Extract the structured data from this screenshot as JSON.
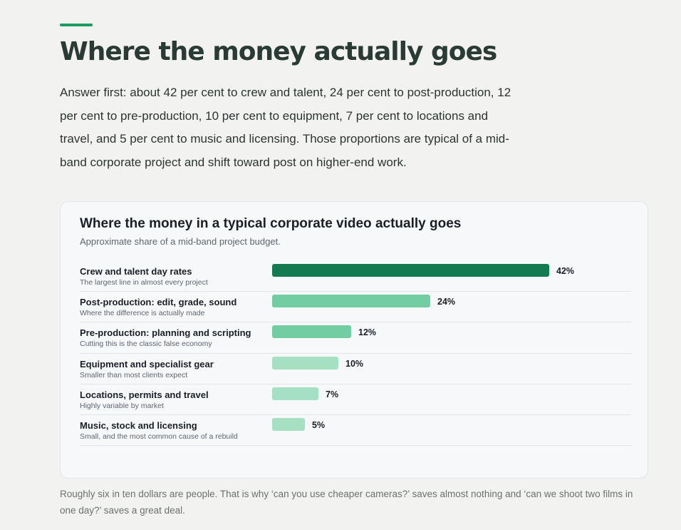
{
  "header": {
    "title": "Where the money actually goes",
    "intro": "Answer first: about 42 per cent to crew and talent, 24 per cent to post-production, 12 per cent to pre-production, 10 per cent to equipment, 7 per cent to locations and travel, and 5 per cent to music and licensing. Those proportions are typical of a mid-band corporate project and shift toward post on higher-end work."
  },
  "chart_data": {
    "type": "bar",
    "orientation": "horizontal",
    "title": "Where the money in a typical corporate video actually goes",
    "subtitle": "Approximate share of a mid-band project budget.",
    "unit": "%",
    "xlim": [
      0,
      42
    ],
    "categories": [
      "Crew and talent day rates",
      "Post-production: edit, grade, sound",
      "Pre-production: planning and scripting",
      "Equipment and specialist gear",
      "Locations, permits and travel",
      "Music, stock and licensing"
    ],
    "descriptions": [
      "The largest line in almost every project",
      "Where the difference is actually made",
      "Cutting this is the classic false economy",
      "Smaller than most clients expect",
      "Highly variable by market",
      "Small, and the most common cause of a rebuild"
    ],
    "values": [
      42,
      24,
      12,
      10,
      7,
      5
    ],
    "value_labels": [
      "42%",
      "24%",
      "12%",
      "10%",
      "7%",
      "5%"
    ],
    "bar_colors": [
      "#147a52",
      "#72cda2",
      "#72cda2",
      "#a6e0c2",
      "#a6e0c2",
      "#a6e0c2"
    ]
  },
  "footer": {
    "note": "Roughly six in ten dollars are people. That is why ‘can you use cheaper cameras?’ saves almost nothing and ‘can we shoot two films in one day?’ saves a great deal."
  },
  "colors": {
    "accent": "#1e9a63",
    "title": "#2a3a35",
    "card_background": "#f7f8fa"
  }
}
